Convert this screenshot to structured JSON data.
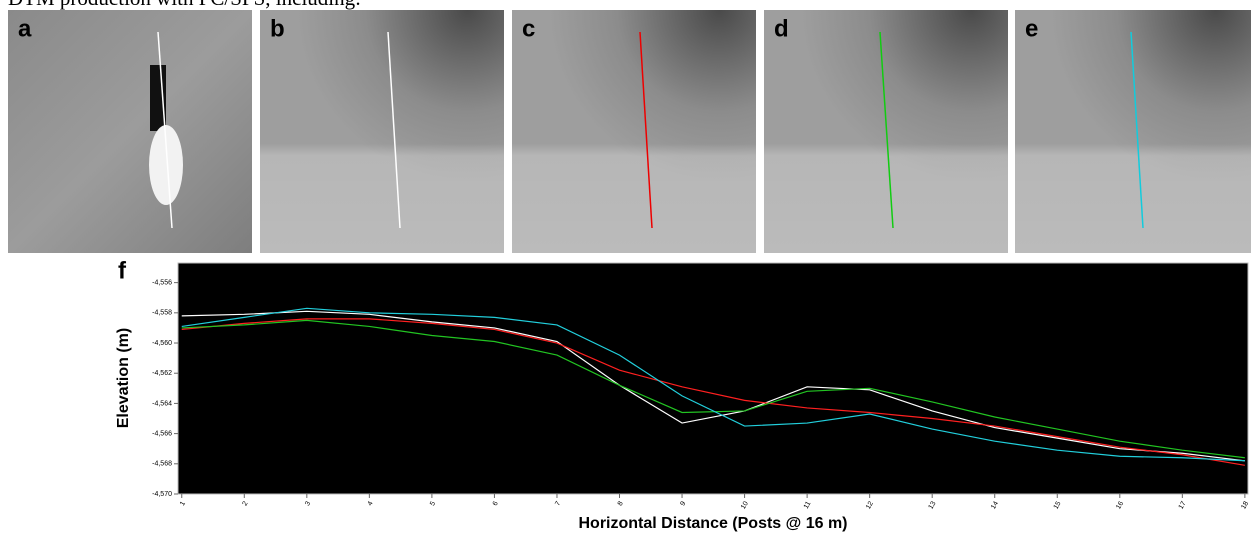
{
  "caption": "DTM production with PC/SPS, including:",
  "panels": [
    {
      "label": "a"
    },
    {
      "label": "b"
    },
    {
      "label": "c"
    },
    {
      "label": "d"
    },
    {
      "label": "e"
    }
  ],
  "chart_data": {
    "type": "line",
    "label": "f",
    "xlabel": "Horizontal Distance (Posts @ 16 m)",
    "ylabel": "Elevation (m)",
    "x": [
      1,
      2,
      3,
      4,
      5,
      6,
      7,
      8,
      9,
      10,
      11,
      12,
      13,
      14,
      15,
      16,
      17,
      18
    ],
    "xlim": [
      0.94,
      18.05
    ],
    "xticks": [
      1,
      2,
      3,
      4,
      5,
      6,
      7,
      8,
      9,
      10,
      11,
      12,
      13,
      14,
      15,
      16,
      17,
      18
    ],
    "ylim": [
      -4570,
      -4554.7
    ],
    "yticks": [
      {
        "value": -4570,
        "label": "-4,570"
      },
      {
        "value": -4568,
        "label": "-4,568"
      },
      {
        "value": -4566,
        "label": "-4,566"
      },
      {
        "value": -4564,
        "label": "-4,564"
      },
      {
        "value": -4562,
        "label": "-4,562"
      },
      {
        "value": -4560,
        "label": "-4,560"
      },
      {
        "value": -4558,
        "label": "-4,558"
      },
      {
        "value": -4556,
        "label": "-4,556"
      }
    ],
    "background": "#000000",
    "series": [
      {
        "color": "#ffffff",
        "values": [
          -4558.2,
          -4558.1,
          -4557.9,
          -4558.1,
          -4558.6,
          -4559,
          -4559.9,
          -4562.8,
          -4565.3,
          -4564.5,
          -4562.9,
          -4563.1,
          -4564.5,
          -4565.6,
          -4566.3,
          -4567,
          -4567.3,
          -4567.8
        ]
      },
      {
        "color": "#ff2020",
        "values": [
          -4559.1,
          -4558.7,
          -4558.4,
          -4558.4,
          -4558.7,
          -4559.1,
          -4560,
          -4561.8,
          -4562.9,
          -4563.8,
          -4564.3,
          -4564.6,
          -4565,
          -4565.5,
          -4566.2,
          -4566.9,
          -4567.4,
          -4568.1
        ]
      },
      {
        "color": "#22c422",
        "values": [
          -4559,
          -4558.8,
          -4558.5,
          -4558.9,
          -4559.5,
          -4559.9,
          -4560.8,
          -4562.8,
          -4564.6,
          -4564.5,
          -4563.2,
          -4563,
          -4563.9,
          -4564.9,
          -4565.7,
          -4566.5,
          -4567.1,
          -4567.6
        ]
      },
      {
        "color": "#22cfdc",
        "values": [
          -4558.9,
          -4558.3,
          -4557.7,
          -4558,
          -4558.1,
          -4558.3,
          -4558.8,
          -4560.8,
          -4563.5,
          -4565.5,
          -4565.3,
          -4564.7,
          -4565.7,
          -4566.5,
          -4567.1,
          -4567.5,
          -4567.6,
          -4567.8
        ]
      }
    ]
  }
}
